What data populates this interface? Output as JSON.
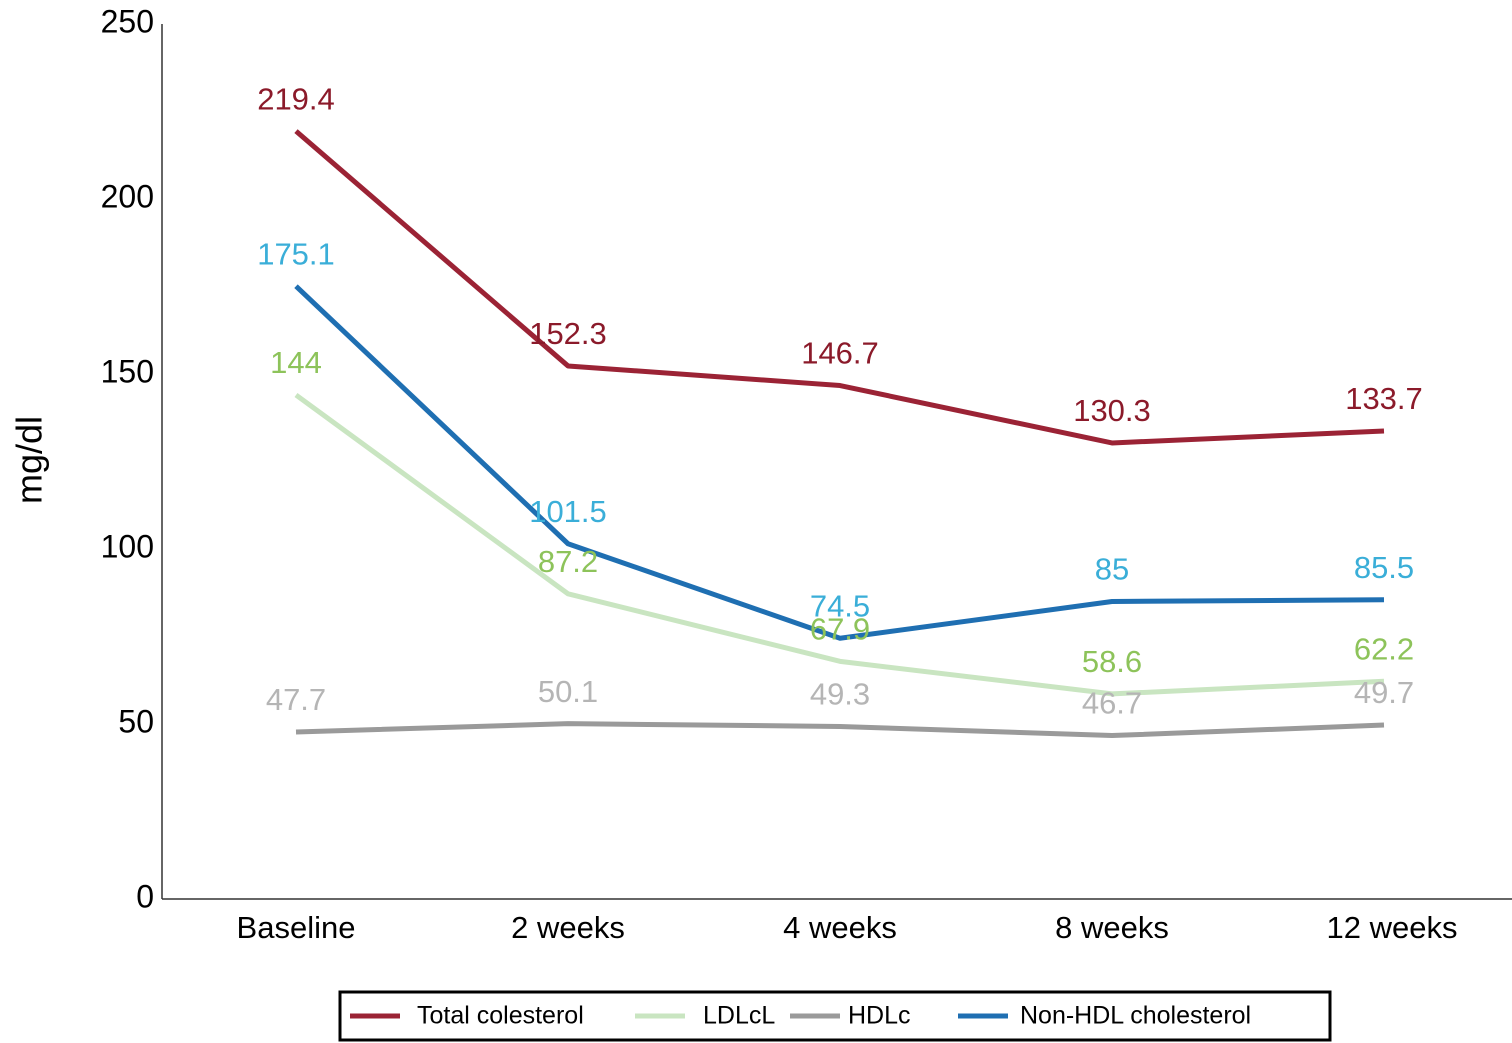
{
  "chart_data": {
    "type": "line",
    "y_label": "mg/dl",
    "categories": [
      "Baseline",
      "2 weeks",
      "4 weeks",
      "8 weeks",
      "12 weeks"
    ],
    "series": [
      {
        "name": "Total colesterol",
        "color": "#9b2335",
        "label_color": "#8b1a2a",
        "values": [
          219.4,
          152.3,
          146.7,
          130.3,
          133.7
        ]
      },
      {
        "name": "LDLcL",
        "color": "#c9e5c1",
        "label_color": "#8dc35a",
        "values": [
          144,
          87.2,
          67.9,
          58.6,
          62.2
        ]
      },
      {
        "name": "HDLc",
        "color": "#9a9a9a",
        "label_color": "#b5b5b5",
        "values": [
          47.7,
          50.1,
          49.3,
          46.7,
          49.7
        ]
      },
      {
        "name": "Non-HDL cholesterol",
        "color": "#1f6fb2",
        "label_color": "#3aaed8",
        "values": [
          175.1,
          101.5,
          74.5,
          85,
          85.5
        ]
      }
    ],
    "ylim": [
      0,
      250
    ],
    "yticks": [
      0,
      50,
      100,
      150,
      200,
      250
    ],
    "grid": false
  }
}
